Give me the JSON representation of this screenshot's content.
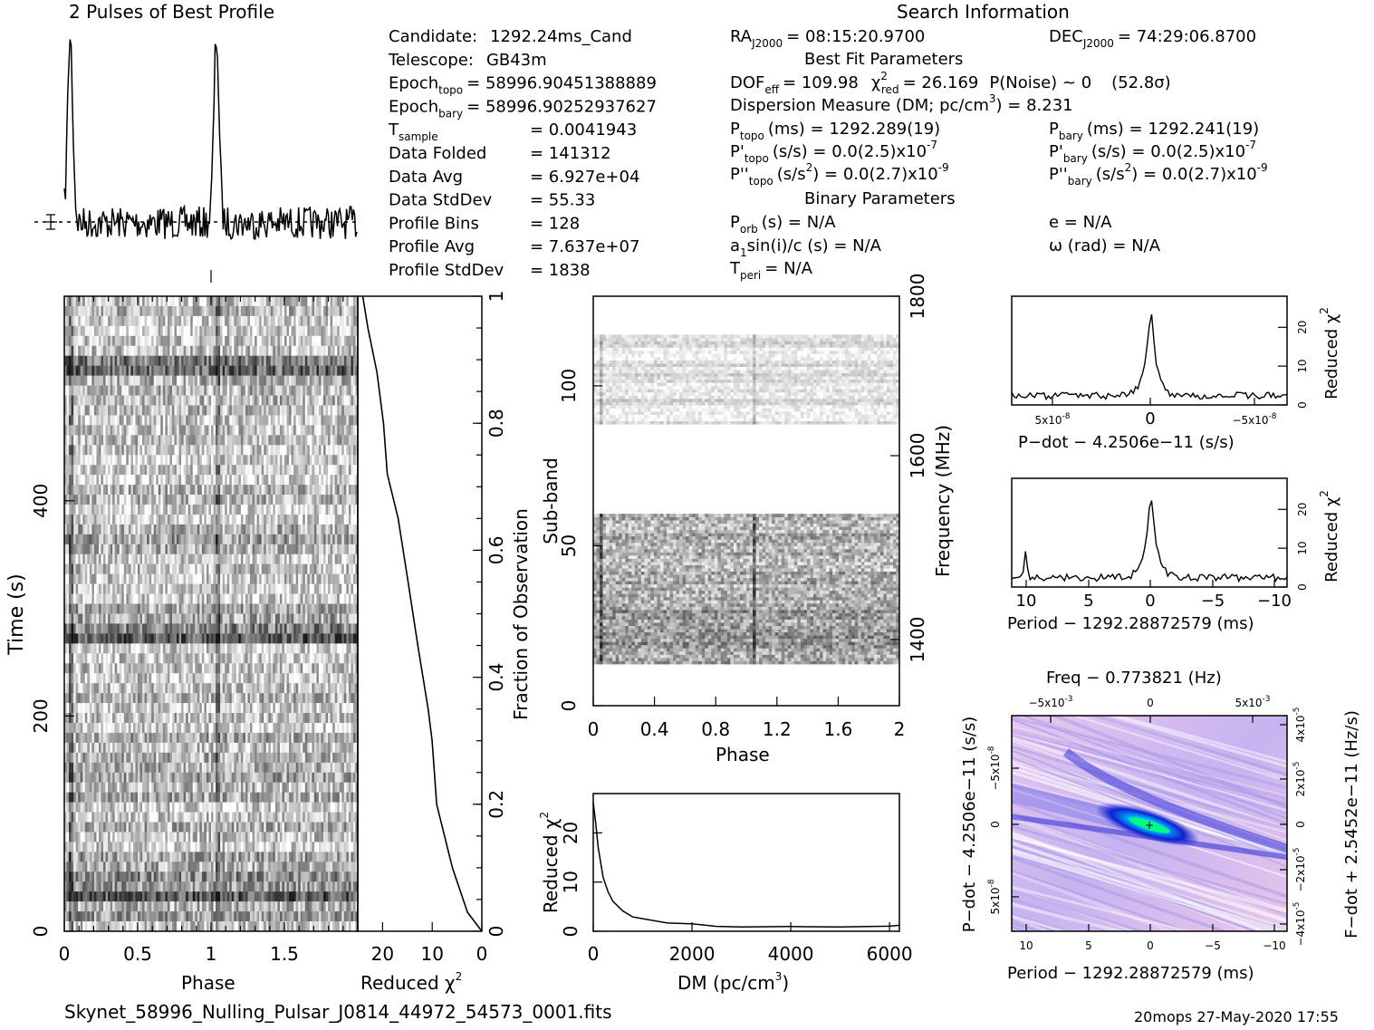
{
  "titles": {
    "profile": "2 Pulses of Best Profile",
    "search": "Search Information",
    "best_fit": "Best Fit Parameters",
    "binary": "Binary Parameters"
  },
  "info_left": [
    {
      "label": "Candidate:",
      "value": "1292.24ms_Cand"
    },
    {
      "label": "Telescope:",
      "value": "GB43m"
    },
    {
      "label": "Epoch",
      "sub": "topo",
      "value": "= 58996.90451388889"
    },
    {
      "label": "Epoch",
      "sub": "bary",
      "value": "= 58996.90252937627"
    },
    {
      "label": "T",
      "sub": "sample",
      "value": "=   0.0041943"
    },
    {
      "label": "Data Folded",
      "value": "=   141312"
    },
    {
      "label": "Data Avg",
      "value": "=   6.927e+04"
    },
    {
      "label": "Data StdDev",
      "value": "=   55.33"
    },
    {
      "label": "Profile Bins",
      "value": "=   128"
    },
    {
      "label": "Profile Avg",
      "value": "=   7.637e+07"
    },
    {
      "label": "Profile StdDev",
      "value": "=   1838"
    }
  ],
  "info_mid": {
    "ra": "RA",
    "ra_sub": "J2000",
    "ra_value": "= 08:15:20.9700",
    "dof": "DOF",
    "dof_sub": "eff",
    "dof_value": "= 109.98",
    "chi": "χ",
    "chi_sub": "red",
    "chi_value": "= 26.169",
    "pnoise": "P(Noise) ~ 0",
    "sigma": "(52.8σ)",
    "dm": "Dispersion Measure (DM; pc/cm",
    "dm_value": ") = 8.231",
    "ptopo": "P",
    "ptopo_sub": "topo",
    "ptopo_value": "(ms) =   1292.289(19)",
    "pdtopo": "P'",
    "pdtopo_sub": "topo",
    "pdtopo_value": "(s/s) = 0.0(2.5)x10",
    "pdtopo_exp": "-7",
    "pddtopo": "P''",
    "pddtopo_sub": "topo",
    "pddtopo_value": "(s/s",
    "pddtopo_value2": ") = 0.0(2.7)x10",
    "pddtopo_exp": "-9",
    "porb": "P",
    "porb_sub": "orb",
    "porb_value": "(s) = N/A",
    "a1": "a",
    "a1_sub": "1",
    "a1_value": "sin(i)/c (s) = N/A",
    "tperi": "T",
    "tperi_sub": "peri",
    "tperi_value": "= N/A"
  },
  "info_right": {
    "dec": "DEC",
    "dec_sub": "J2000",
    "dec_value": "= 74:29:06.8700",
    "pbary": "P",
    "pbary_sub": "bary",
    "pbary_value": "(ms) =   1292.241(19)",
    "pdbary": "P'",
    "pdbary_sub": "bary",
    "pdbary_value": "(s/s) = 0.0(2.5)x10",
    "pdbary_exp": "-7",
    "pddbary": "P''",
    "pddbary_sub": "bary",
    "pddbary_value": "(s/s",
    "pddbary_value2": ") = 0.0(2.7)x10",
    "pddbary_exp": "-9",
    "e": "e = N/A",
    "omega": "ω (rad) = N/A"
  },
  "footer": {
    "filename": "Skynet_58996_Nulling_Pulsar_J0814_44972_54573_0001.fits",
    "stamp": "20mops 27-May-2020 17:55"
  },
  "chart_data": [
    {
      "id": "profile",
      "type": "line",
      "title": "2 Pulses of Best Profile",
      "x": "phase 0-2 (two periods)",
      "peaks_at_phase": [
        0.04,
        1.04
      ],
      "baseline": 0.0
    },
    {
      "id": "time_phase",
      "type": "heatmap",
      "xlabel": "Phase",
      "ylabel": "Time (s)",
      "xlim": [
        0,
        2
      ],
      "ylim": [
        0,
        590
      ],
      "xticks": [
        "0",
        "0.5",
        "1",
        "1.5"
      ],
      "yticks": [
        "0",
        "200",
        "400"
      ]
    },
    {
      "id": "time_chi",
      "type": "line",
      "xlabel": "Reduced χ",
      "ylabel": "Fraction of Observation",
      "xticks": [
        "20",
        "10",
        "0"
      ],
      "yticks": [
        "0",
        "0.2",
        "0.4",
        "0.6",
        "0.8",
        "1"
      ],
      "x": [
        0,
        3,
        6,
        9,
        10,
        11,
        13,
        15,
        17,
        19,
        20,
        21,
        23,
        24
      ],
      "y": [
        0,
        0.03,
        0.1,
        0.2,
        0.3,
        0.35,
        0.45,
        0.55,
        0.65,
        0.72,
        0.8,
        0.88,
        0.95,
        1.0
      ]
    },
    {
      "id": "subband_phase",
      "type": "heatmap",
      "xlabel": "Phase",
      "ylabel": "Sub-band",
      "y2label": "Frequency (MHz)",
      "xlim": [
        0,
        2
      ],
      "ylim": [
        0,
        128
      ],
      "xticks": [
        "0",
        "0.4",
        "0.8",
        "1.2",
        "1.6",
        "2"
      ],
      "yticks": [
        "0",
        "50",
        "100"
      ],
      "y2ticks": [
        "1400",
        "1600",
        "1800"
      ]
    },
    {
      "id": "dm_chi",
      "type": "line",
      "xlabel": "DM (pc/cm",
      "ylabel": "Reduced χ",
      "xlim": [
        0,
        6200
      ],
      "ylim": [
        0,
        28
      ],
      "xticks": [
        "0",
        "2000",
        "4000",
        "6000"
      ],
      "yticks": [
        "0",
        "10",
        "20"
      ],
      "x": [
        0,
        50,
        100,
        200,
        300,
        400,
        600,
        800,
        1000,
        1500,
        2000,
        2500,
        3000,
        4000,
        5000,
        6000,
        6200
      ],
      "y": [
        26.2,
        22,
        17,
        11,
        8,
        6,
        4.2,
        3,
        2.5,
        1.8,
        1.4,
        1.1,
        1.0,
        1.0,
        1.0,
        1.1,
        1.1
      ]
    },
    {
      "id": "pdot_chi",
      "type": "line",
      "xlabel": "P-dot − 4.2506e-11 (s/s)",
      "ylabel": "Reduced χ",
      "xticks": [
        "5x10",
        "0",
        "−5x10"
      ],
      "xtick_exp": "-8",
      "yticks": [
        "0",
        "10",
        "20"
      ],
      "ylim": [
        0,
        28
      ]
    },
    {
      "id": "period_chi",
      "type": "line",
      "xlabel": "Period − 1292.28872579 (ms)",
      "ylabel": "Reduced χ",
      "xticks": [
        "10",
        "5",
        "0",
        "−5",
        "−10"
      ],
      "yticks": [
        "0",
        "10",
        "20"
      ],
      "ylim": [
        0,
        28
      ]
    },
    {
      "id": "p_pdot",
      "type": "heatmap",
      "title": "Freq − 0.773821 (Hz)",
      "xlabel": "Period − 1292.28872579 (ms)",
      "ylabel": "P-dot − 4.2506e-11 (s/s)",
      "y2label": "F-dot + 2.5452e-11 (Hz/s)",
      "xticks": [
        "10",
        "5",
        "0",
        "−5",
        "−10"
      ],
      "x2ticks": [
        "−5x10",
        "0",
        "5x10"
      ],
      "yticks": [
        "−5x10",
        "0",
        "5x10"
      ],
      "y2ticks": [
        "4x10",
        "2x10",
        "0",
        "−2x10",
        "−4x10"
      ]
    }
  ]
}
